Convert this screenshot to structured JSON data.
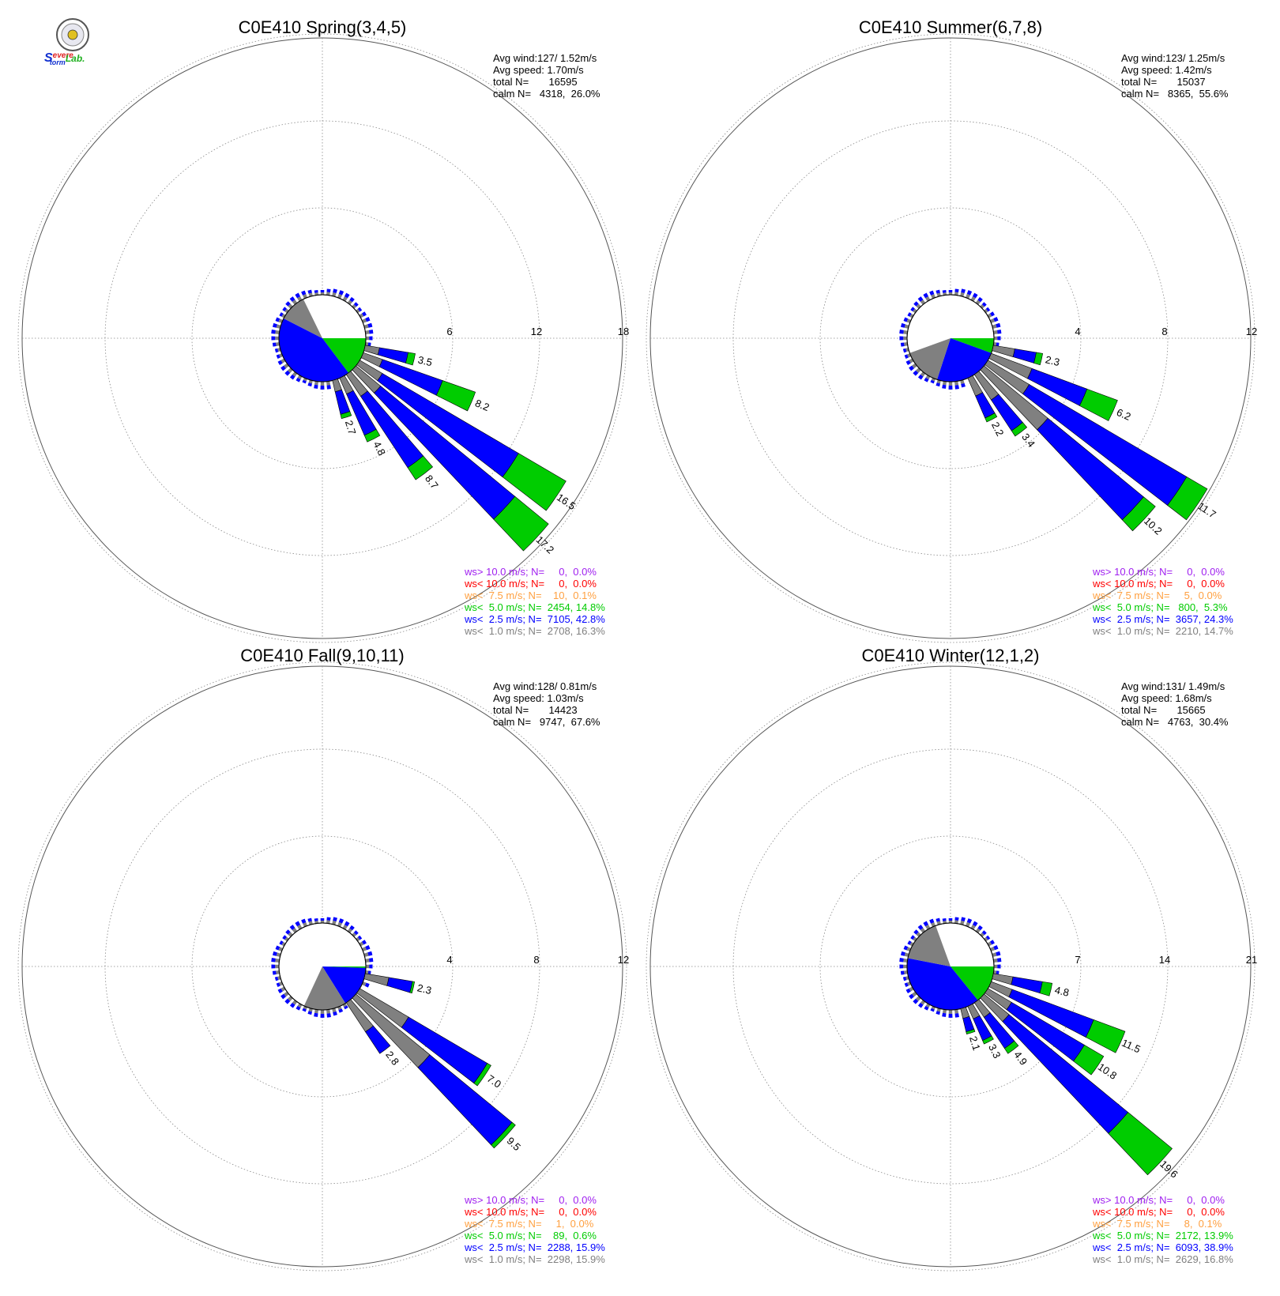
{
  "logo": {
    "text_s": "S",
    "text_evere": "evere",
    "text_torm": "torm",
    "text_lab": "Lab.",
    "colors": {
      "s": "#1030d0",
      "evere": "#e02020",
      "torm": "#1030d0",
      "lab": "#20b020"
    }
  },
  "colors": {
    "ws_gt10": "#a020f0",
    "ws_lt10": "#ff0000",
    "ws_lt75": "#ffa040",
    "ws_lt50": "#00cc00",
    "ws_lt25": "#0000ff",
    "ws_lt10ms": "#808080",
    "grid": "#888888"
  },
  "chart_data": [
    {
      "type": "windrose",
      "title": "C0E410 Spring(3,4,5)",
      "stats": [
        "Avg wind:127/ 1.52m/s",
        "Avg speed: 1.70m/s",
        "total N=       16595",
        "calm N=   4318,  26.0%"
      ],
      "rings": [
        "6",
        "12",
        "18"
      ],
      "ring_max": 18,
      "calm_pct": 26.0,
      "sector_shares": [
        {
          "cls": "calm",
          "from": 0,
          "to": 90
        },
        {
          "cls": "ws_lt50",
          "from": 90,
          "to": 143
        },
        {
          "cls": "ws_lt25",
          "from": 143,
          "to": 297
        },
        {
          "cls": "ws_lt10ms",
          "from": 297,
          "to": 334
        }
      ],
      "bars": [
        {
          "dir": 103,
          "total": 3.5,
          "label": "3.5",
          "parts": [
            [
              "ws_lt10ms",
              1.0
            ],
            [
              "ws_lt25",
              2.0
            ],
            [
              "ws_lt50",
              0.5
            ]
          ]
        },
        {
          "dir": 113,
          "total": 8.2,
          "label": "8.2",
          "parts": [
            [
              "ws_lt10ms",
              1.4
            ],
            [
              "ws_lt25",
              4.4
            ],
            [
              "ws_lt50",
              2.4
            ]
          ]
        },
        {
          "dir": 124,
          "total": 16.5,
          "label": "16.5",
          "parts": [
            [
              "ws_lt10ms",
              1.8
            ],
            [
              "ws_lt25",
              10.9
            ],
            [
              "ws_lt50",
              3.8
            ]
          ]
        },
        {
          "dir": 133,
          "total": 17.2,
          "label": "17.2",
          "parts": [
            [
              "ws_lt10ms",
              2.2
            ],
            [
              "ws_lt25",
              12.0
            ],
            [
              "ws_lt50",
              3.0
            ]
          ]
        },
        {
          "dir": 143,
          "total": 8.7,
          "label": "8.7",
          "parts": [
            [
              "ws_lt10ms",
              1.8
            ],
            [
              "ws_lt25",
              5.9
            ],
            [
              "ws_lt50",
              1.0
            ]
          ]
        },
        {
          "dir": 153,
          "total": 4.8,
          "label": "4.8",
          "parts": [
            [
              "ws_lt10ms",
              1.2
            ],
            [
              "ws_lt25",
              3.1
            ],
            [
              "ws_lt50",
              0.5
            ]
          ]
        },
        {
          "dir": 163,
          "total": 2.7,
          "label": "2.7",
          "parts": [
            [
              "ws_lt10ms",
              0.8
            ],
            [
              "ws_lt25",
              1.6
            ],
            [
              "ws_lt50",
              0.3
            ]
          ]
        }
      ],
      "legend": [
        {
          "cls": "ws_gt10",
          "text": "ws> 10.0 m/s; N=     0,  0.0%"
        },
        {
          "cls": "ws_lt10",
          "text": "ws< 10.0 m/s; N=     0,  0.0%"
        },
        {
          "cls": "ws_lt75",
          "text": "ws<  7.5 m/s; N=    10,  0.1%"
        },
        {
          "cls": "ws_lt50",
          "text": "ws<  5.0 m/s; N=  2454, 14.8%"
        },
        {
          "cls": "ws_lt25",
          "text": "ws<  2.5 m/s; N=  7105, 42.8%"
        },
        {
          "cls": "ws_lt10ms",
          "text": "ws<  1.0 m/s; N=  2708, 16.3%"
        }
      ]
    },
    {
      "type": "windrose",
      "title": "C0E410 Summer(6,7,8)",
      "stats": [
        "Avg wind:123/ 1.25m/s",
        "Avg speed: 1.42m/s",
        "total N=       15037",
        "calm N=   8365,  55.6%"
      ],
      "rings": [
        "4",
        "8",
        "12"
      ],
      "ring_max": 12,
      "calm_pct": 55.6,
      "sector_shares": [
        {
          "cls": "calm",
          "from": 0,
          "to": 90
        },
        {
          "cls": "ws_lt50",
          "from": 90,
          "to": 110
        },
        {
          "cls": "ws_lt25",
          "from": 110,
          "to": 198
        },
        {
          "cls": "ws_lt10ms",
          "from": 198,
          "to": 250
        },
        {
          "cls": "calm",
          "from": 250,
          "to": 360
        }
      ],
      "bars": [
        {
          "dir": 103,
          "total": 2.3,
          "label": "2.3",
          "parts": [
            [
              "ws_lt10ms",
              1.0
            ],
            [
              "ws_lt25",
              1.0
            ],
            [
              "ws_lt50",
              0.3
            ]
          ]
        },
        {
          "dir": 114,
          "total": 6.2,
          "label": "6.2",
          "parts": [
            [
              "ws_lt10ms",
              2.0
            ],
            [
              "ws_lt25",
              2.7
            ],
            [
              "ws_lt50",
              1.5
            ]
          ]
        },
        {
          "dir": 124,
          "total": 11.7,
          "label": "11.7",
          "parts": [
            [
              "ws_lt10ms",
              2.2
            ],
            [
              "ws_lt25",
              8.4
            ],
            [
              "ws_lt50",
              1.1
            ]
          ]
        },
        {
          "dir": 133,
          "total": 10.2,
          "label": "10.2",
          "parts": [
            [
              "ws_lt10ms",
              3.8
            ],
            [
              "ws_lt25",
              5.7
            ],
            [
              "ws_lt50",
              0.7
            ]
          ]
        },
        {
          "dir": 143,
          "total": 3.4,
          "label": "3.4",
          "parts": [
            [
              "ws_lt10ms",
              1.4
            ],
            [
              "ws_lt25",
              1.7
            ],
            [
              "ws_lt50",
              0.3
            ]
          ]
        },
        {
          "dir": 153,
          "total": 2.2,
          "label": "2.2",
          "parts": [
            [
              "ws_lt10ms",
              0.9
            ],
            [
              "ws_lt25",
              1.1
            ],
            [
              "ws_lt50",
              0.2
            ]
          ]
        }
      ],
      "legend": [
        {
          "cls": "ws_gt10",
          "text": "ws> 10.0 m/s; N=     0,  0.0%"
        },
        {
          "cls": "ws_lt10",
          "text": "ws< 10.0 m/s; N=     0,  0.0%"
        },
        {
          "cls": "ws_lt75",
          "text": "ws<  7.5 m/s; N=     5,  0.0%"
        },
        {
          "cls": "ws_lt50",
          "text": "ws<  5.0 m/s; N=   800,  5.3%"
        },
        {
          "cls": "ws_lt25",
          "text": "ws<  2.5 m/s; N=  3657, 24.3%"
        },
        {
          "cls": "ws_lt10ms",
          "text": "ws<  1.0 m/s; N=  2210, 14.7%"
        }
      ]
    },
    {
      "type": "windrose",
      "title": "C0E410 Fall(9,10,11)",
      "stats": [
        "Avg wind:128/ 0.81m/s",
        "Avg speed: 1.03m/s",
        "total N=       14423",
        "calm N=   9747,  67.6%"
      ],
      "rings": [
        "4",
        "8",
        "12"
      ],
      "ring_max": 12,
      "calm_pct": 67.6,
      "sector_shares": [
        {
          "cls": "calm",
          "from": 0,
          "to": 90
        },
        {
          "cls": "ws_lt50",
          "from": 90,
          "to": 92
        },
        {
          "cls": "ws_lt25",
          "from": 92,
          "to": 148
        },
        {
          "cls": "ws_lt10ms",
          "from": 148,
          "to": 205
        },
        {
          "cls": "calm",
          "from": 205,
          "to": 360
        }
      ],
      "bars": [
        {
          "dir": 103,
          "total": 2.3,
          "label": "2.3",
          "parts": [
            [
              "ws_lt10ms",
              1.1
            ],
            [
              "ws_lt25",
              1.1
            ],
            [
              "ws_lt50",
              0.1
            ]
          ]
        },
        {
          "dir": 124,
          "total": 7.0,
          "label": "7.0",
          "parts": [
            [
              "ws_lt10ms",
              2.6
            ],
            [
              "ws_lt25",
              4.2
            ],
            [
              "ws_lt50",
              0.2
            ]
          ]
        },
        {
          "dir": 133,
          "total": 9.5,
          "label": "9.5",
          "parts": [
            [
              "ws_lt10ms",
              4.4
            ],
            [
              "ws_lt25",
              4.9
            ],
            [
              "ws_lt50",
              0.2
            ]
          ]
        },
        {
          "dir": 143,
          "total": 2.8,
          "label": "2.8",
          "parts": [
            [
              "ws_lt10ms",
              1.6
            ],
            [
              "ws_lt25",
              1.2
            ]
          ]
        }
      ],
      "legend": [
        {
          "cls": "ws_gt10",
          "text": "ws> 10.0 m/s; N=     0,  0.0%"
        },
        {
          "cls": "ws_lt10",
          "text": "ws< 10.0 m/s; N=     0,  0.0%"
        },
        {
          "cls": "ws_lt75",
          "text": "ws<  7.5 m/s; N=     1,  0.0%"
        },
        {
          "cls": "ws_lt50",
          "text": "ws<  5.0 m/s; N=    89,  0.6%"
        },
        {
          "cls": "ws_lt25",
          "text": "ws<  2.5 m/s; N=  2288, 15.9%"
        },
        {
          "cls": "ws_lt10ms",
          "text": "ws<  1.0 m/s; N=  2298, 15.9%"
        }
      ]
    },
    {
      "type": "windrose",
      "title": "C0E410 Winter(12,1,2)",
      "stats": [
        "Avg wind:131/ 1.49m/s",
        "Avg speed: 1.68m/s",
        "total N=       15665",
        "calm N=   4763,  30.4%"
      ],
      "rings": [
        "7",
        "14",
        "21"
      ],
      "ring_max": 21,
      "calm_pct": 30.4,
      "sector_shares": [
        {
          "cls": "calm",
          "from": 0,
          "to": 90
        },
        {
          "cls": "ws_lt50",
          "from": 90,
          "to": 141
        },
        {
          "cls": "ws_lt25",
          "from": 141,
          "to": 281
        },
        {
          "cls": "ws_lt10ms",
          "from": 281,
          "to": 340
        }
      ],
      "bars": [
        {
          "dir": 103,
          "total": 4.8,
          "label": "4.8",
          "parts": [
            [
              "ws_lt10ms",
              1.6
            ],
            [
              "ws_lt25",
              2.4
            ],
            [
              "ws_lt50",
              0.8
            ]
          ]
        },
        {
          "dir": 114,
          "total": 11.5,
          "label": "11.5",
          "parts": [
            [
              "ws_lt10ms",
              1.8
            ],
            [
              "ws_lt25",
              7.0
            ],
            [
              "ws_lt50",
              2.7
            ]
          ]
        },
        {
          "dir": 124,
          "total": 10.8,
          "label": "10.8",
          "parts": [
            [
              "ws_lt10ms",
              2.2
            ],
            [
              "ws_lt25",
              6.8
            ],
            [
              "ws_lt50",
              1.8
            ]
          ]
        },
        {
          "dir": 133,
          "total": 19.6,
          "label": "19.6",
          "parts": [
            [
              "ws_lt10ms",
              2.6
            ],
            [
              "ws_lt25",
              12.4
            ],
            [
              "ws_lt50",
              4.6
            ]
          ]
        },
        {
          "dir": 143,
          "total": 4.9,
          "label": "4.9",
          "parts": [
            [
              "ws_lt10ms",
              1.4
            ],
            [
              "ws_lt25",
              3.0
            ],
            [
              "ws_lt50",
              0.5
            ]
          ]
        },
        {
          "dir": 153,
          "total": 3.3,
          "label": "3.3",
          "parts": [
            [
              "ws_lt10ms",
              1.1
            ],
            [
              "ws_lt25",
              1.9
            ],
            [
              "ws_lt50",
              0.3
            ]
          ]
        },
        {
          "dir": 163,
          "total": 2.1,
          "label": "2.1",
          "parts": [
            [
              "ws_lt10ms",
              0.8
            ],
            [
              "ws_lt25",
              1.1
            ],
            [
              "ws_lt50",
              0.2
            ]
          ]
        }
      ],
      "legend": [
        {
          "cls": "ws_gt10",
          "text": "ws> 10.0 m/s; N=     0,  0.0%"
        },
        {
          "cls": "ws_lt10",
          "text": "ws< 10.0 m/s; N=     0,  0.0%"
        },
        {
          "cls": "ws_lt75",
          "text": "ws<  7.5 m/s; N=     8,  0.1%"
        },
        {
          "cls": "ws_lt50",
          "text": "ws<  5.0 m/s; N=  2172, 13.9%"
        },
        {
          "cls": "ws_lt25",
          "text": "ws<  2.5 m/s; N=  6093, 38.9%"
        },
        {
          "cls": "ws_lt10ms",
          "text": "ws<  1.0 m/s; N=  2629, 16.8%"
        }
      ]
    }
  ]
}
